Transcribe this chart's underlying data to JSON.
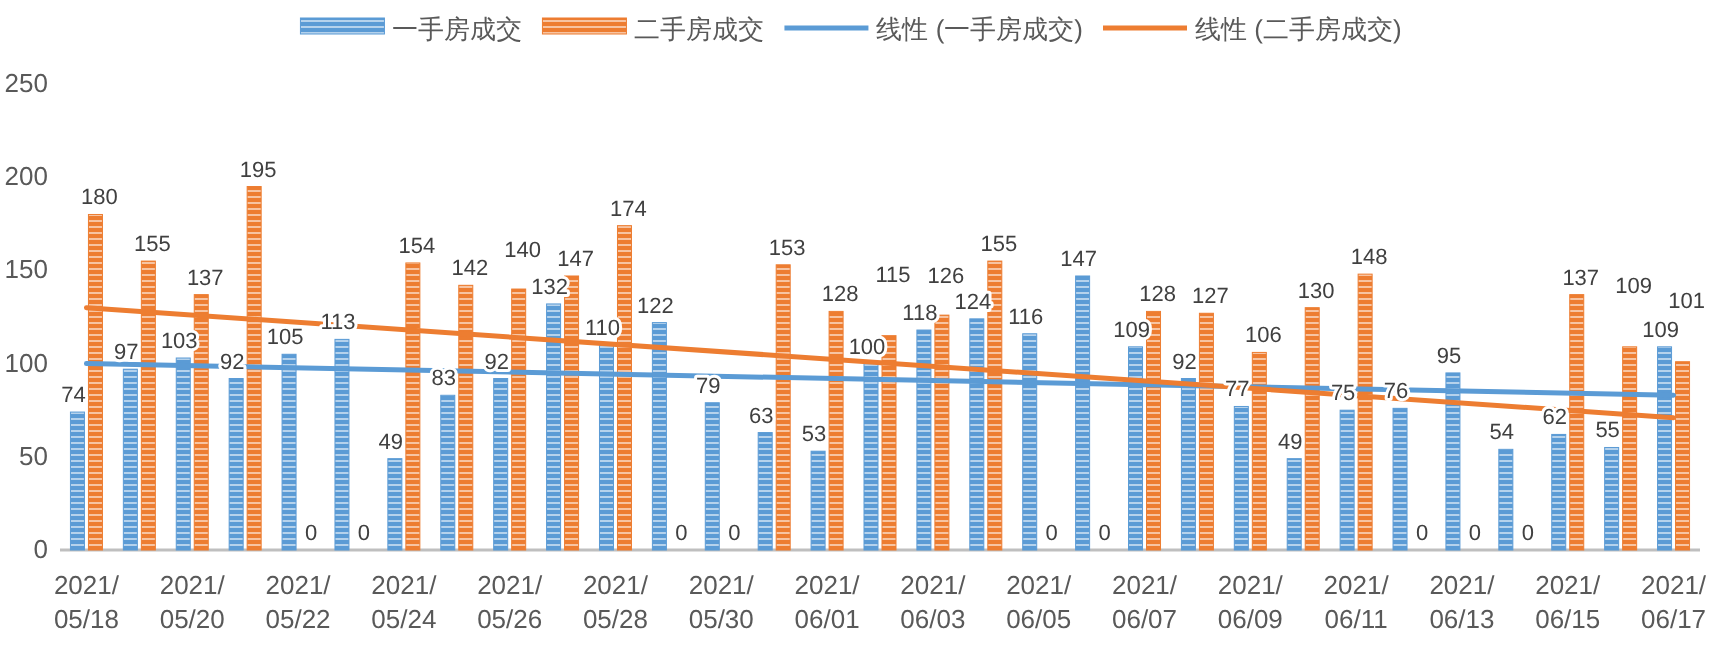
{
  "chart_data": {
    "type": "bar",
    "categories": [
      "2021/\n05/18",
      null,
      "2021/\n05/20",
      null,
      "2021/\n05/22",
      null,
      "2021/\n05/24",
      null,
      "2021/\n05/26",
      null,
      "2021/\n05/28",
      null,
      "2021/\n05/30",
      null,
      "2021/\n06/01",
      null,
      "2021/\n06/03",
      null,
      "2021/\n06/05",
      null,
      "2021/\n06/07",
      null,
      "2021/\n06/09",
      null,
      "2021/\n06/11",
      null,
      "2021/\n06/13",
      null,
      "2021/\n06/15",
      null,
      "2021/\n06/17"
    ],
    "series": [
      {
        "name": "一手房成交",
        "color": "#5b9bd5",
        "values": [
          74,
          97,
          103,
          92,
          105,
          113,
          49,
          83,
          92,
          132,
          110,
          122,
          79,
          63,
          53,
          100,
          118,
          124,
          116,
          147,
          109,
          92,
          77,
          49,
          75,
          76,
          95,
          54,
          62,
          55,
          109
        ],
        "value_labels": [
          "74",
          "97",
          "103",
          "92",
          "105",
          "113",
          "49",
          "83",
          "92",
          "132",
          "110",
          "122",
          "79",
          "63",
          "53",
          "100",
          "118",
          "124",
          "116",
          "147",
          "109",
          "92",
          "77",
          "49",
          "75",
          "76",
          "95",
          "54",
          "62",
          "55",
          "109"
        ]
      },
      {
        "name": "二手房成交",
        "color": "#ed7d31",
        "values": [
          180,
          155,
          137,
          195,
          0,
          0,
          154,
          142,
          140,
          147,
          174,
          0,
          0,
          153,
          128,
          115,
          126,
          155,
          0,
          0,
          128,
          127,
          106,
          130,
          148,
          0,
          0,
          0,
          137,
          109,
          101
        ],
        "value_labels": [
          "180",
          "155",
          "137",
          "195",
          "0",
          "0",
          "154",
          "142",
          "140",
          "147",
          "174",
          "0",
          "0",
          "153",
          "128",
          "115",
          "126",
          "155",
          "0",
          "0",
          "128",
          "127",
          "106",
          "130",
          "148",
          "0",
          "0",
          "0",
          "137",
          "109",
          "101"
        ]
      },
      {
        "name": "线性 (一手房成交)",
        "type": "line",
        "color": "#5b9bd5",
        "x": [
          "2021/\n05/18",
          "2021/\n06/17"
        ],
        "values": [
          100,
          83
        ]
      },
      {
        "name": "线性 (二手房成交)",
        "type": "line",
        "color": "#ed7d31",
        "x": [
          "2021/\n05/18",
          "2021/\n06/17"
        ],
        "values": [
          130,
          71
        ]
      }
    ],
    "ylim": [
      0,
      250
    ],
    "yticks": [
      0,
      50,
      100,
      150,
      200,
      250
    ],
    "legend": "top",
    "grid": false
  }
}
